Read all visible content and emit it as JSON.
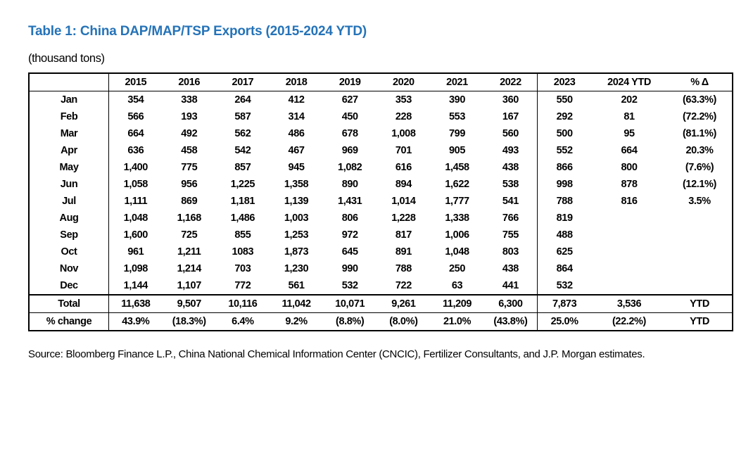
{
  "page": {
    "title": "Table 1: China DAP/MAP/TSP Exports (2015-2024 YTD)",
    "title_color": "#2573B8",
    "units": "(thousand tons)",
    "source": "Source: Bloomberg Finance L.P., China National Chemical Information Center (CNCIC), Fertilizer Consultants, and J.P. Morgan estimates."
  },
  "table": {
    "columns": [
      "",
      "2015",
      "2016",
      "2017",
      "2018",
      "2019",
      "2020",
      "2021",
      "2022",
      "2023",
      "2024 YTD",
      "% Δ"
    ],
    "rows": [
      {
        "label": "Jan",
        "values": [
          "354",
          "338",
          "264",
          "412",
          "627",
          "353",
          "390",
          "360",
          "550",
          "202",
          "(63.3%)"
        ]
      },
      {
        "label": "Feb",
        "values": [
          "566",
          "193",
          "587",
          "314",
          "450",
          "228",
          "553",
          "167",
          "292",
          "81",
          "(72.2%)"
        ]
      },
      {
        "label": "Mar",
        "values": [
          "664",
          "492",
          "562",
          "486",
          "678",
          "1,008",
          "799",
          "560",
          "500",
          "95",
          "(81.1%)"
        ]
      },
      {
        "label": "Apr",
        "values": [
          "636",
          "458",
          "542",
          "467",
          "969",
          "701",
          "905",
          "493",
          "552",
          "664",
          "20.3%"
        ]
      },
      {
        "label": "May",
        "values": [
          "1,400",
          "775",
          "857",
          "945",
          "1,082",
          "616",
          "1,458",
          "438",
          "866",
          "800",
          "(7.6%)"
        ]
      },
      {
        "label": "Jun",
        "values": [
          "1,058",
          "956",
          "1,225",
          "1,358",
          "890",
          "894",
          "1,622",
          "538",
          "998",
          "878",
          "(12.1%)"
        ]
      },
      {
        "label": "Jul",
        "values": [
          "1,111",
          "869",
          "1,181",
          "1,139",
          "1,431",
          "1,014",
          "1,777",
          "541",
          "788",
          "816",
          "3.5%"
        ]
      },
      {
        "label": "Aug",
        "values": [
          "1,048",
          "1,168",
          "1,486",
          "1,003",
          "806",
          "1,228",
          "1,338",
          "766",
          "819",
          "",
          ""
        ]
      },
      {
        "label": "Sep",
        "values": [
          "1,600",
          "725",
          "855",
          "1,253",
          "972",
          "817",
          "1,006",
          "755",
          "488",
          "",
          ""
        ]
      },
      {
        "label": "Oct",
        "values": [
          "961",
          "1,211",
          "1083",
          "1,873",
          "645",
          "891",
          "1,048",
          "803",
          "625",
          "",
          ""
        ]
      },
      {
        "label": "Nov",
        "values": [
          "1,098",
          "1,214",
          "703",
          "1,230",
          "990",
          "788",
          "250",
          "438",
          "864",
          "",
          ""
        ]
      },
      {
        "label": "Dec",
        "values": [
          "1,144",
          "1,107",
          "772",
          "561",
          "532",
          "722",
          "63",
          "441",
          "532",
          "",
          ""
        ]
      }
    ],
    "total_row": {
      "label": "Total",
      "values": [
        "11,638",
        "9,507",
        "10,116",
        "11,042",
        "10,071",
        "9,261",
        "11,209",
        "6,300",
        "7,873",
        "3,536",
        "YTD"
      ]
    },
    "pct_change_row": {
      "label": "% change",
      "values": [
        "43.9%",
        "(18.3%)",
        "6.4%",
        "9.2%",
        "(8.8%)",
        "(8.0%)",
        "21.0%",
        "(43.8%)",
        "25.0%",
        "(22.2%)",
        "YTD"
      ]
    }
  }
}
